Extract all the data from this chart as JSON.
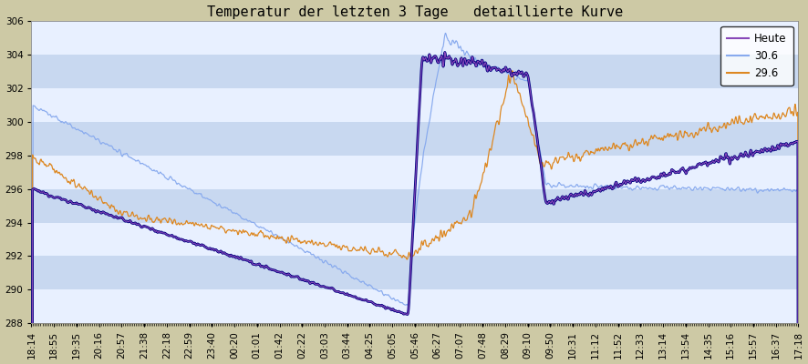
{
  "title": "Temperatur der letzten 3 Tage   detaillierte Kurve",
  "ylim": [
    288,
    306
  ],
  "yticks": [
    288,
    290,
    292,
    294,
    296,
    298,
    300,
    302,
    304,
    306
  ],
  "xtick_labels": [
    "18:14",
    "18:55",
    "19:35",
    "20:16",
    "20:57",
    "21:38",
    "22:18",
    "22:59",
    "23:40",
    "00:20",
    "01:01",
    "01:42",
    "02:22",
    "03:03",
    "03:44",
    "04:25",
    "05:05",
    "05:46",
    "06:27",
    "07:07",
    "07:48",
    "08:29",
    "09:10",
    "09:50",
    "10:31",
    "11:12",
    "11:52",
    "12:33",
    "13:14",
    "13:54",
    "14:35",
    "15:16",
    "15:57",
    "16:37",
    "17:18"
  ],
  "bg_color": "#cdc9a5",
  "plot_bg_color": "#c8d8f0",
  "stripe_color": "#e8f0ff",
  "legend_labels": [
    "Heute",
    "30.6",
    "29.6"
  ],
  "heute_color": "#8848b8",
  "heute_dark_color": "#000080",
  "line30_color": "#88aaee",
  "line29_color": "#dd8822",
  "title_fontsize": 11,
  "tick_fontsize": 7.5
}
